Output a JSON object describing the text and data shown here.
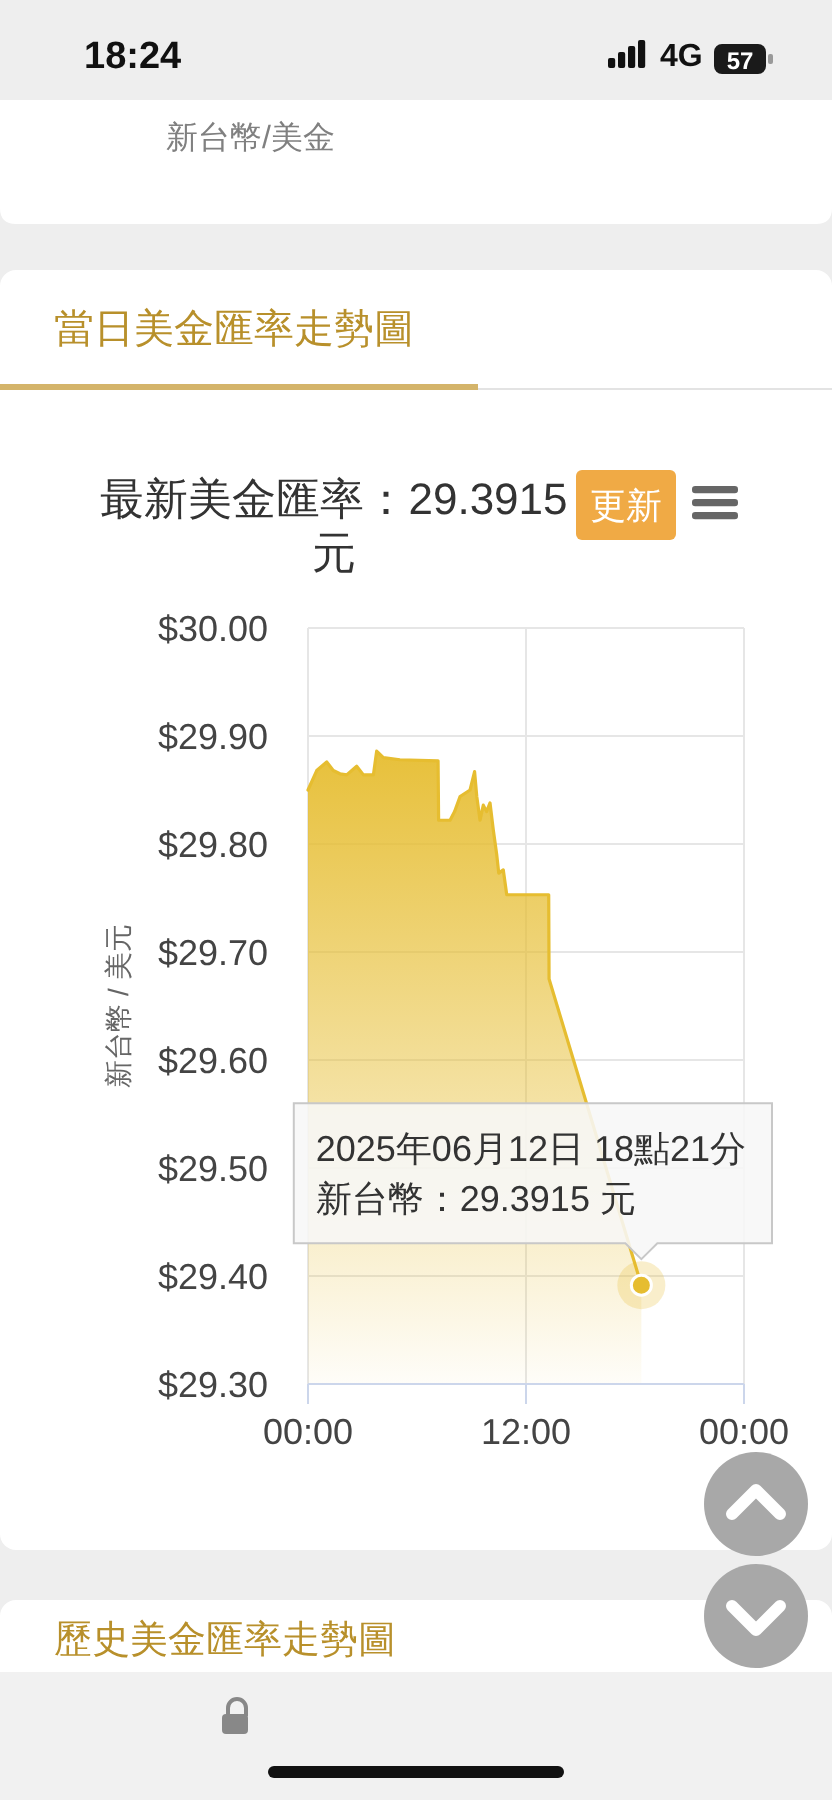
{
  "chart_data": {
    "type": "area",
    "title": "最新美金匯率：29.3915 元",
    "ylabel": "新台幣 / 美元",
    "x": [
      0,
      0.48,
      1.03,
      1.39,
      1.76,
      2.13,
      2.68,
      3.05,
      3.6,
      3.78,
      4.15,
      5.06,
      7.16,
      7.19,
      7.82,
      8.07,
      8.37,
      8.92,
      9.17,
      9.29,
      9.47,
      9.65,
      9.83,
      10.02,
      10.2,
      10.39,
      10.5,
      10.75,
      10.94,
      13.25,
      13.27,
      18.35
    ],
    "values": [
      29.85,
      29.868,
      29.876,
      29.868,
      29.865,
      29.864,
      29.872,
      29.864,
      29.864,
      29.886,
      29.88,
      29.878,
      29.877,
      29.822,
      29.822,
      29.83,
      29.844,
      29.85,
      29.867,
      29.844,
      29.822,
      29.836,
      29.83,
      29.838,
      29.813,
      29.79,
      29.773,
      29.776,
      29.753,
      29.753,
      29.675,
      29.3915
    ],
    "color": "#e6bd30",
    "xlim": [
      0,
      24
    ],
    "xticks": [
      {
        "value": 0,
        "label": "00:00"
      },
      {
        "value": 12,
        "label": "12:00"
      },
      {
        "value": 24,
        "label": "00:00"
      }
    ],
    "ylim": [
      29.3,
      30.0
    ],
    "yticks": [
      {
        "value": 29.3,
        "label": "$29.30"
      },
      {
        "value": 29.4,
        "label": "$29.40"
      },
      {
        "value": 29.5,
        "label": "$29.50"
      },
      {
        "value": 29.6,
        "label": "$29.60"
      },
      {
        "value": 29.7,
        "label": "$29.70"
      },
      {
        "value": 29.8,
        "label": "$29.80"
      },
      {
        "value": 29.9,
        "label": "$29.90"
      },
      {
        "value": 30.0,
        "label": "$30.00"
      }
    ],
    "grid": true,
    "annotations": [
      "18:24",
      "4G",
      "57",
      "新台幣/美金",
      "當日美金匯率走勢圖",
      "更新",
      "歷史美金匯率走勢圖",
      "2025年06月12日 18點21分",
      {
        "text": "新台幣：29.3915 元",
        "x": 18.35,
        "y": 29.3915
      }
    ]
  }
}
